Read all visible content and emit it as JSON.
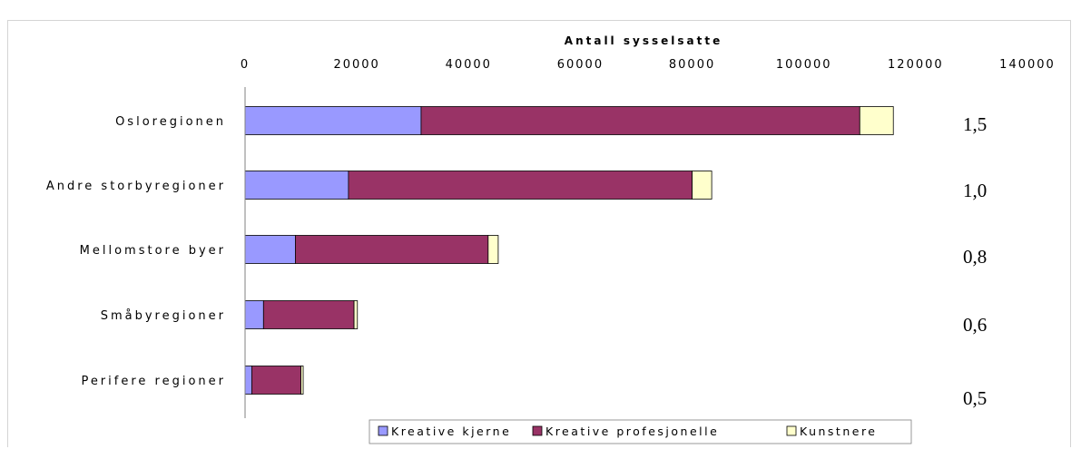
{
  "chart_data": {
    "type": "bar",
    "orientation": "horizontal",
    "stacked": true,
    "xlabel": "Antall sysselsatte",
    "xlim": [
      0,
      140000
    ],
    "x_ticks": [
      "0",
      "20000",
      "40000",
      "60000",
      "80000",
      "100000",
      "120000",
      "140000"
    ],
    "x_tick_values": [
      0,
      20000,
      40000,
      60000,
      80000,
      100000,
      120000,
      140000
    ],
    "categories": [
      "Osloregionen",
      "Andre storbyregioner",
      "Mellomstore byer",
      "Småbyregioner",
      "Perifere regioner"
    ],
    "series": [
      {
        "name": "Kreative kjerne",
        "color": "#9999ff",
        "values": [
          31500,
          18500,
          9000,
          3300,
          1200
        ]
      },
      {
        "name": "Kreative profesjonelle",
        "color": "#993366",
        "values": [
          78500,
          61500,
          34500,
          16200,
          8800
        ]
      },
      {
        "name": "Kunstnere",
        "color": "#ffffcc",
        "values": [
          6000,
          3500,
          1800,
          600,
          400
        ]
      }
    ],
    "annotations": [
      "1,5",
      "1,0",
      "0,8",
      "0,6",
      "0,5"
    ],
    "grid": false,
    "legend_position": "bottom"
  }
}
